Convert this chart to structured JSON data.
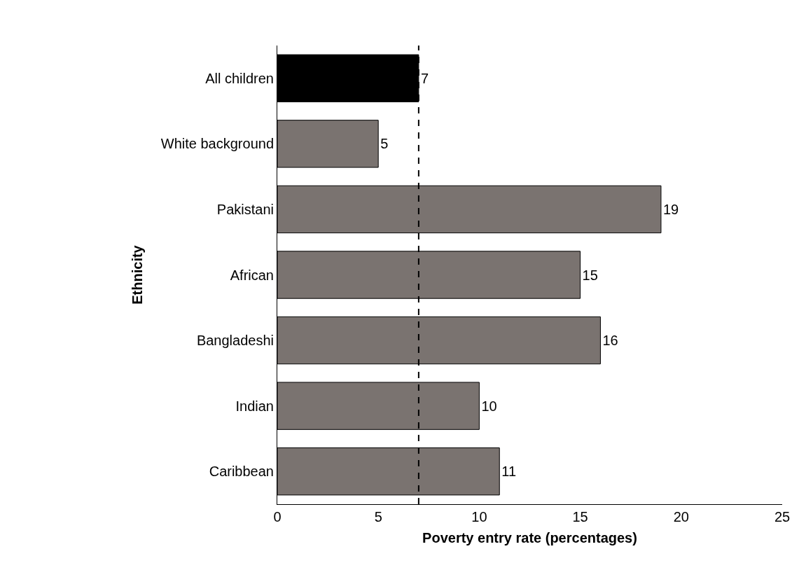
{
  "chart_data": {
    "type": "bar",
    "orientation": "horizontal",
    "xlabel": "Poverty entry rate (percentages)",
    "ylabel": "Ethnicity",
    "categories": [
      "All children",
      "White background",
      "Pakistani",
      "African",
      "Bangladeshi",
      "Indian",
      "Caribbean"
    ],
    "values": [
      7,
      5,
      19,
      15,
      16,
      10,
      11
    ],
    "colors": [
      "#000000",
      "#7a7370",
      "#7a7370",
      "#7a7370",
      "#7a7370",
      "#7a7370",
      "#7a7370"
    ],
    "xlim": [
      0,
      25
    ],
    "xticks": [
      0,
      5,
      10,
      15,
      20,
      25
    ],
    "ref_lines": [
      {
        "axis": "x",
        "value": 7,
        "color": "#000000",
        "line_style": "dashed"
      }
    ],
    "data_labels": true
  }
}
